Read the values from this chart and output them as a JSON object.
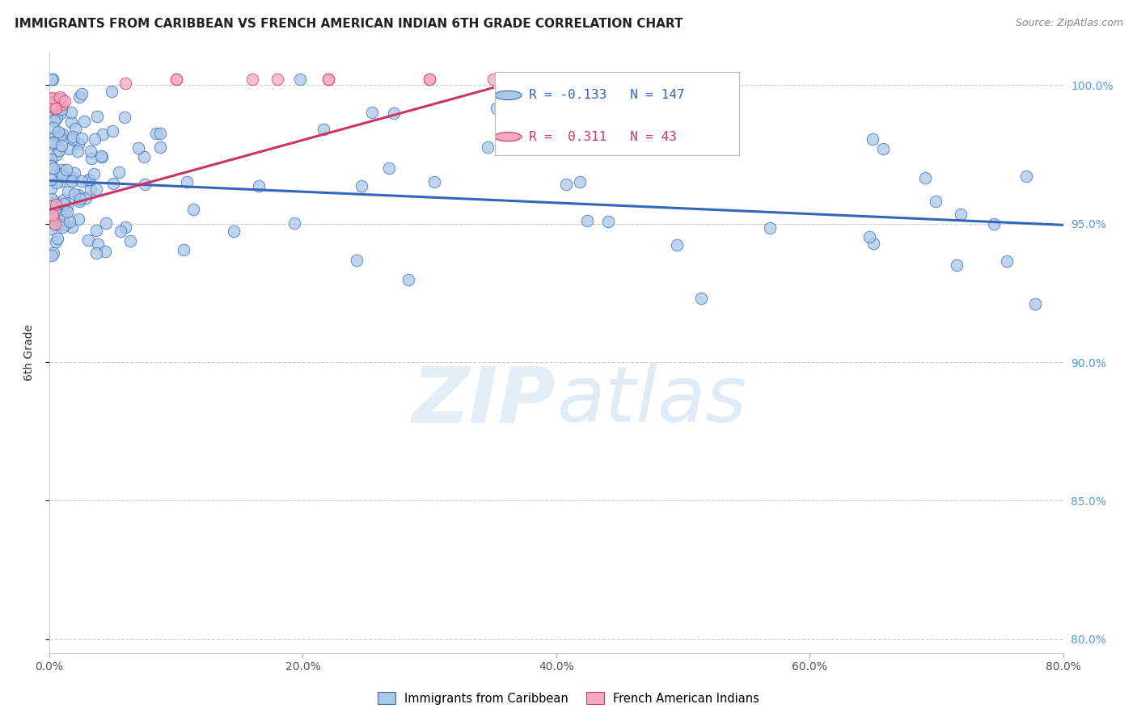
{
  "title": "IMMIGRANTS FROM CARIBBEAN VS FRENCH AMERICAN INDIAN 6TH GRADE CORRELATION CHART",
  "source": "Source: ZipAtlas.com",
  "ylabel": "6th Grade",
  "blue_R": -0.133,
  "blue_N": 147,
  "pink_R": 0.311,
  "pink_N": 43,
  "blue_color": "#aac8e8",
  "pink_color": "#f5aabf",
  "blue_line_color": "#3366bb",
  "pink_line_color": "#cc3366",
  "legend_blue_label": "Immigrants from Caribbean",
  "legend_pink_label": "French American Indians",
  "xlim": [
    0.0,
    0.8
  ],
  "ylim": [
    0.795,
    1.012
  ],
  "yticks": [
    1.0,
    0.95,
    0.9,
    0.85,
    0.8
  ],
  "xticks": [
    0.0,
    0.2,
    0.4,
    0.6,
    0.8
  ],
  "blue_line_x": [
    0.0,
    0.8
  ],
  "blue_line_y": [
    0.9655,
    0.9495
  ],
  "pink_line_x": [
    0.0,
    0.35
  ],
  "pink_line_y": [
    0.955,
    0.999
  ]
}
